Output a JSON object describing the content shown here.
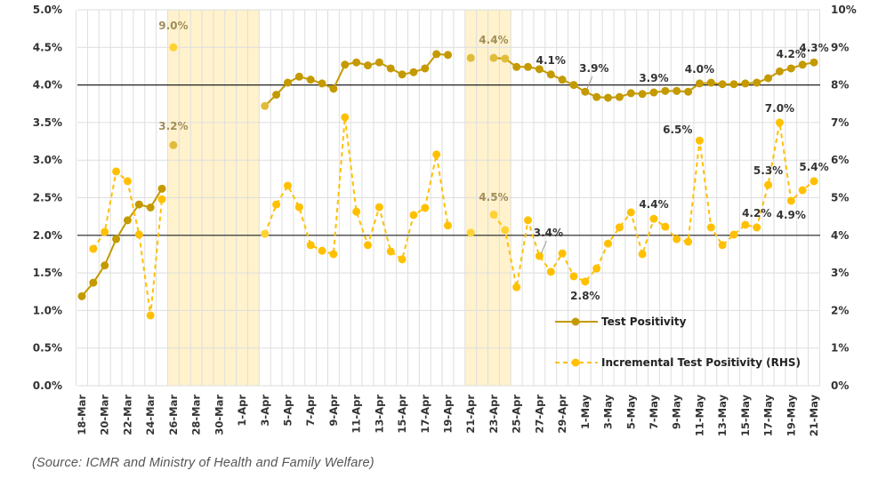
{
  "source_note": "(Source: ICMR and Ministry of Health and Family Welfare)",
  "chart_data": {
    "type": "line",
    "title": "",
    "xlabel": "",
    "ylabel": "",
    "y_left": {
      "range": [
        0,
        5.0
      ],
      "ticks": [
        "0.0%",
        "0.5%",
        "1.0%",
        "1.5%",
        "2.0%",
        "2.5%",
        "3.0%",
        "3.5%",
        "4.0%",
        "4.5%",
        "5.0%"
      ],
      "values": [
        0,
        0.5,
        1.0,
        1.5,
        2.0,
        2.5,
        3.0,
        3.5,
        4.0,
        4.5,
        5.0
      ]
    },
    "y_right": {
      "range": [
        0,
        10
      ],
      "ticks": [
        "0%",
        "1%",
        "2%",
        "3%",
        "4%",
        "5%",
        "6%",
        "7%",
        "8%",
        "9%",
        "10%"
      ],
      "values": [
        0,
        1,
        2,
        3,
        4,
        5,
        6,
        7,
        8,
        9,
        10
      ]
    },
    "reference_lines": [
      {
        "axis": "left",
        "value": 4.0
      },
      {
        "axis": "left",
        "value": 2.0
      }
    ],
    "highlight_ranges": [
      {
        "from": "26-Mar",
        "to": "2-Apr"
      },
      {
        "from": "21-Apr",
        "to": "24-Apr"
      }
    ],
    "grid": true,
    "legend_position": "bottom-right",
    "x": [
      "18-Mar",
      "19-Mar",
      "20-Mar",
      "21-Mar",
      "22-Mar",
      "23-Mar",
      "24-Mar",
      "25-Mar",
      "26-Mar",
      "27-Mar",
      "28-Mar",
      "29-Mar",
      "30-Mar",
      "31-Mar",
      "1-Apr",
      "2-Apr",
      "3-Apr",
      "4-Apr",
      "5-Apr",
      "6-Apr",
      "7-Apr",
      "8-Apr",
      "9-Apr",
      "10-Apr",
      "11-Apr",
      "12-Apr",
      "13-Apr",
      "14-Apr",
      "15-Apr",
      "16-Apr",
      "17-Apr",
      "18-Apr",
      "19-Apr",
      "20-Apr",
      "21-Apr",
      "22-Apr",
      "23-Apr",
      "24-Apr",
      "25-Apr",
      "26-Apr",
      "27-Apr",
      "28-Apr",
      "29-Apr",
      "30-Apr",
      "1-May",
      "2-May",
      "3-May",
      "4-May",
      "5-May",
      "6-May",
      "7-May",
      "8-May",
      "9-May",
      "10-May",
      "11-May",
      "12-May",
      "13-May",
      "14-May",
      "15-May",
      "16-May",
      "17-May",
      "18-May",
      "19-May",
      "20-May",
      "21-May"
    ],
    "x_tick_labels": [
      "18-Mar",
      "20-Mar",
      "22-Mar",
      "24-Mar",
      "26-Mar",
      "28-Mar",
      "30-Mar",
      "1-Apr",
      "3-Apr",
      "5-Apr",
      "7-Apr",
      "9-Apr",
      "11-Apr",
      "13-Apr",
      "15-Apr",
      "17-Apr",
      "19-Apr",
      "21-Apr",
      "23-Apr",
      "25-Apr",
      "27-Apr",
      "29-Apr",
      "1-May",
      "3-May",
      "5-May",
      "7-May",
      "9-May",
      "11-May",
      "13-May",
      "15-May",
      "17-May",
      "19-May",
      "21-May"
    ],
    "series": [
      {
        "name": "Test Positivity",
        "axis": "left",
        "style": "solid",
        "color": "#C49A00",
        "values": [
          1.19,
          1.37,
          1.6,
          1.95,
          2.2,
          2.41,
          2.37,
          2.62,
          3.2,
          null,
          null,
          null,
          null,
          null,
          null,
          null,
          3.72,
          3.87,
          4.03,
          4.11,
          4.07,
          4.02,
          3.95,
          4.27,
          4.3,
          4.26,
          4.3,
          4.22,
          4.14,
          4.17,
          4.22,
          4.41,
          4.4,
          null,
          4.36,
          null,
          4.36,
          4.35,
          4.24,
          4.24,
          4.21,
          4.14,
          4.07,
          4.0,
          3.91,
          3.84,
          3.83,
          3.84,
          3.89,
          3.88,
          3.9,
          3.92,
          3.92,
          3.91,
          4.02,
          4.03,
          4.01,
          4.01,
          4.02,
          4.03,
          4.09,
          4.18,
          4.22,
          4.27,
          4.3
        ]
      },
      {
        "name": "Incremental Test Positivity (RHS)",
        "axis": "right",
        "style": "dashed",
        "color": "#FFC000",
        "values": [
          null,
          3.64,
          4.09,
          5.7,
          5.44,
          4.02,
          1.87,
          4.96,
          9.0,
          null,
          null,
          null,
          null,
          null,
          null,
          null,
          4.04,
          4.82,
          5.32,
          4.75,
          3.74,
          3.59,
          3.5,
          7.14,
          4.63,
          3.74,
          4.75,
          3.57,
          3.36,
          4.54,
          4.73,
          6.15,
          4.26,
          null,
          4.07,
          null,
          4.55,
          4.14,
          2.62,
          4.4,
          3.45,
          3.03,
          3.52,
          2.91,
          2.77,
          3.12,
          3.78,
          4.21,
          4.61,
          3.5,
          4.44,
          4.23,
          3.9,
          3.83,
          6.52,
          4.21,
          3.74,
          4.02,
          4.28,
          4.21,
          5.34,
          7.0,
          4.92,
          5.2,
          5.44
        ]
      }
    ],
    "muted_points": [
      {
        "series": 0,
        "x": "26-Mar"
      },
      {
        "series": 1,
        "x": "26-Mar"
      },
      {
        "series": 0,
        "x": "3-Apr"
      },
      {
        "series": 1,
        "x": "3-Apr"
      },
      {
        "series": 0,
        "x": "21-Apr"
      },
      {
        "series": 1,
        "x": "21-Apr"
      },
      {
        "series": 0,
        "x": "23-Apr"
      },
      {
        "series": 1,
        "x": "23-Apr"
      },
      {
        "series": 0,
        "x": "24-Apr"
      },
      {
        "series": 1,
        "x": "24-Apr"
      }
    ],
    "annotations": [
      {
        "text": "9.0%",
        "series": 1,
        "x": "26-Mar",
        "muted": true,
        "pos": "above"
      },
      {
        "text": "3.2%",
        "series": 0,
        "x": "26-Mar",
        "muted": true,
        "pos": "above"
      },
      {
        "text": "4.4%",
        "series": 0,
        "x": "23-Apr",
        "muted": true,
        "pos": "above"
      },
      {
        "text": "4.5%",
        "series": 1,
        "x": "23-Apr",
        "muted": true,
        "pos": "above"
      },
      {
        "text": "4.1%",
        "series": 0,
        "x": "28-Apr",
        "muted": false,
        "pos": "above"
      },
      {
        "text": "3.9%",
        "series": 0,
        "x": "1-May",
        "muted": false,
        "pos": "above-leader"
      },
      {
        "text": "3.9%",
        "series": 0,
        "x": "7-May",
        "muted": false,
        "pos": "above"
      },
      {
        "text": "4.0%",
        "series": 0,
        "x": "11-May",
        "muted": false,
        "pos": "above"
      },
      {
        "text": "4.2%",
        "series": 0,
        "x": "19-May",
        "muted": false,
        "pos": "above"
      },
      {
        "text": "4.3%",
        "series": 0,
        "x": "21-May",
        "muted": false,
        "pos": "above"
      },
      {
        "text": "3.4%",
        "series": 1,
        "x": "27-Apr",
        "muted": false,
        "pos": "above-leader"
      },
      {
        "text": "2.8%",
        "series": 1,
        "x": "1-May",
        "muted": false,
        "pos": "below"
      },
      {
        "text": "4.4%",
        "series": 1,
        "x": "7-May",
        "muted": false,
        "pos": "above"
      },
      {
        "text": "6.5%",
        "series": 1,
        "x": "11-May",
        "muted": false,
        "pos": "left"
      },
      {
        "text": "4.2%",
        "series": 1,
        "x": "16-May",
        "muted": false,
        "pos": "above"
      },
      {
        "text": "5.3%",
        "series": 1,
        "x": "17-May",
        "muted": false,
        "pos": "above"
      },
      {
        "text": "7.0%",
        "series": 1,
        "x": "18-May",
        "muted": false,
        "pos": "above"
      },
      {
        "text": "4.9%",
        "series": 1,
        "x": "19-May",
        "muted": false,
        "pos": "below"
      },
      {
        "text": "5.4%",
        "series": 1,
        "x": "21-May",
        "muted": false,
        "pos": "above"
      }
    ]
  }
}
